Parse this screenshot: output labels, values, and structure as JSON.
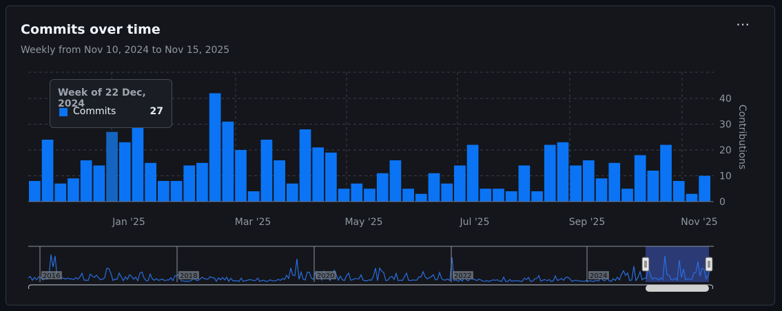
{
  "header": {
    "title": "Commits over time",
    "subtitle": "Weekly from Nov 10, 2024 to Nov 15, 2025",
    "menu_label": "⋯"
  },
  "tooltip": {
    "title": "Week of 22 Dec, 2024",
    "series_name": "Commits",
    "value": "27"
  },
  "colors": {
    "bar": "#0a74f5",
    "highlight_bar": "#1565c0",
    "navigator_line": "#2a6ee0",
    "navigator_window": "#2b3a75"
  },
  "navigator": {
    "year_labels": [
      "2016",
      "2018",
      "2020",
      "2022",
      "2024"
    ],
    "selection": "Nov 2024 – Nov 2025"
  },
  "chart_data": {
    "type": "bar",
    "title": "Commits over time",
    "subtitle": "Weekly from Nov 10, 2024 to Nov 15, 2025",
    "xlabel": "",
    "ylabel": "Contributions",
    "ylim": [
      0,
      40
    ],
    "yticks": [
      0,
      10,
      20,
      30,
      40
    ],
    "x_tick_labels": [
      "Jan '25",
      "Mar '25",
      "May '25",
      "Jul '25",
      "Sep '25",
      "Nov '25"
    ],
    "grid": true,
    "highlighted_index": 6,
    "series": [
      {
        "name": "Commits",
        "values": [
          8,
          24,
          7,
          9,
          16,
          14,
          27,
          23,
          29,
          15,
          8,
          8,
          14,
          15,
          42,
          31,
          20,
          4,
          24,
          16,
          7,
          28,
          21,
          19,
          5,
          7,
          5,
          11,
          16,
          5,
          3,
          11,
          7,
          14,
          22,
          5,
          5,
          4,
          14,
          4,
          22,
          23,
          14,
          16,
          9,
          15,
          5,
          18,
          12,
          22,
          8,
          3,
          10
        ]
      }
    ]
  }
}
